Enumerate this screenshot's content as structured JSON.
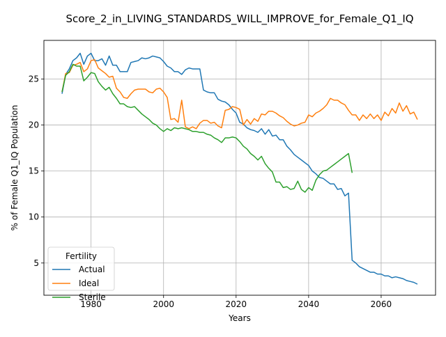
{
  "chart_data": {
    "type": "line",
    "title": "Score_2_in_LIVING_STANDARDS_WILL_IMPROVE_for_Female_Q1_IQ",
    "xlabel": "Years",
    "ylabel": "% of Female Q1_IQ Population",
    "xlim": [
      1967,
      2075
    ],
    "ylim": [
      1.5,
      29.2
    ],
    "xticks": [
      1980,
      2000,
      2020,
      2040,
      2060
    ],
    "yticks": [
      5,
      10,
      15,
      20,
      25
    ],
    "grid": true,
    "legend": {
      "title": "Fertility",
      "placement": "lower-left"
    },
    "series": [
      {
        "name": "Actual",
        "color": "#1f77b4",
        "x": [
          1972,
          1973,
          1974,
          1975,
          1976,
          1977,
          1978,
          1979,
          1980,
          1981,
          1982,
          1983,
          1984,
          1985,
          1986,
          1987,
          1988,
          1989,
          1990,
          1991,
          1992,
          1993,
          1994,
          1995,
          1996,
          1997,
          1998,
          1999,
          2000,
          2001,
          2002,
          2003,
          2004,
          2005,
          2006,
          2007,
          2008,
          2009,
          2010,
          2011,
          2012,
          2013,
          2014,
          2015,
          2016,
          2017,
          2018,
          2019,
          2020,
          2021,
          2022,
          2023,
          2024,
          2025,
          2026,
          2027,
          2028,
          2029,
          2030,
          2031,
          2032,
          2033,
          2034,
          2035,
          2036,
          2037,
          2038,
          2039,
          2040,
          2041,
          2042,
          2043,
          2044,
          2045,
          2046,
          2047,
          2048,
          2049,
          2050,
          2051,
          2052,
          2053,
          2054,
          2055,
          2056,
          2057,
          2058,
          2059,
          2060,
          2061,
          2062,
          2063,
          2064,
          2065,
          2066,
          2067,
          2068,
          2069,
          2070
        ],
        "y": [
          23.4,
          25.5,
          26.1,
          27.0,
          27.3,
          27.8,
          26.6,
          27.5,
          27.8,
          27.0,
          27.0,
          27.2,
          26.5,
          27.5,
          26.5,
          26.5,
          25.8,
          25.8,
          25.8,
          26.8,
          26.9,
          27.0,
          27.3,
          27.2,
          27.3,
          27.5,
          27.4,
          27.3,
          26.9,
          26.4,
          26.2,
          25.8,
          25.8,
          25.5,
          26.0,
          26.2,
          26.1,
          26.1,
          26.1,
          23.8,
          23.6,
          23.5,
          23.5,
          22.8,
          22.6,
          22.5,
          22.2,
          21.7,
          21.3,
          20.3,
          20.1,
          19.7,
          19.5,
          19.4,
          19.2,
          19.6,
          19.0,
          19.5,
          18.8,
          18.9,
          18.4,
          18.4,
          17.7,
          17.3,
          16.8,
          16.5,
          16.2,
          15.9,
          15.6,
          15.0,
          14.7,
          14.3,
          14.2,
          13.9,
          13.6,
          13.6,
          13.0,
          13.1,
          12.3,
          12.6,
          5.3,
          5.0,
          4.6,
          4.4,
          4.2,
          4.0,
          4.0,
          3.8,
          3.8,
          3.6,
          3.6,
          3.4,
          3.5,
          3.4,
          3.3,
          3.1,
          3.0,
          2.9,
          2.7
        ]
      },
      {
        "name": "Ideal",
        "color": "#ff7f0e",
        "x": [
          1972,
          1973,
          1974,
          1975,
          1976,
          1977,
          1978,
          1979,
          1980,
          1981,
          1982,
          1983,
          1984,
          1985,
          1986,
          1987,
          1988,
          1989,
          1990,
          1991,
          1992,
          1993,
          1994,
          1995,
          1996,
          1997,
          1998,
          1999,
          2000,
          2001,
          2002,
          2003,
          2004,
          2005,
          2006,
          2007,
          2008,
          2009,
          2010,
          2011,
          2012,
          2013,
          2014,
          2015,
          2016,
          2017,
          2018,
          2019,
          2020,
          2021,
          2022,
          2023,
          2024,
          2025,
          2026,
          2027,
          2028,
          2029,
          2030,
          2031,
          2032,
          2033,
          2034,
          2035,
          2036,
          2037,
          2038,
          2039,
          2040,
          2041,
          2042,
          2043,
          2044,
          2045,
          2046,
          2047,
          2048,
          2049,
          2050,
          2051,
          2052,
          2053,
          2054,
          2055,
          2056,
          2057,
          2058,
          2059,
          2060,
          2061,
          2062,
          2063,
          2064,
          2065,
          2066,
          2067,
          2068,
          2069,
          2070
        ],
        "y": [
          23.6,
          25.6,
          25.7,
          26.5,
          26.6,
          26.8,
          25.8,
          26.1,
          27.0,
          27.1,
          26.2,
          25.9,
          25.6,
          25.2,
          25.3,
          24.0,
          23.6,
          23.0,
          22.9,
          23.4,
          23.8,
          23.9,
          23.9,
          23.9,
          23.6,
          23.5,
          23.9,
          24.0,
          23.6,
          23.0,
          20.6,
          20.7,
          20.3,
          22.7,
          19.8,
          19.6,
          19.8,
          19.6,
          20.2,
          20.5,
          20.5,
          20.2,
          20.3,
          19.9,
          19.7,
          21.6,
          21.7,
          22.0,
          21.9,
          21.7,
          20.0,
          20.6,
          20.1,
          20.7,
          20.4,
          21.2,
          21.1,
          21.5,
          21.5,
          21.3,
          21.0,
          20.8,
          20.4,
          20.1,
          19.9,
          20.0,
          20.2,
          20.3,
          21.1,
          20.9,
          21.3,
          21.5,
          21.8,
          22.2,
          22.9,
          22.7,
          22.7,
          22.4,
          22.2,
          21.6,
          21.1,
          21.1,
          20.5,
          21.1,
          20.7,
          21.2,
          20.7,
          21.1,
          20.5,
          21.4,
          21.0,
          21.8,
          21.3,
          22.4,
          21.5,
          22.1,
          21.2,
          21.4,
          20.6
        ]
      },
      {
        "name": "Sterile",
        "color": "#2ca02c",
        "x": [
          1972,
          1973,
          1974,
          1975,
          1976,
          1977,
          1978,
          1979,
          1980,
          1981,
          1982,
          1983,
          1984,
          1985,
          1986,
          1987,
          1988,
          1989,
          1990,
          1991,
          1992,
          1993,
          1994,
          1995,
          1996,
          1997,
          1998,
          1999,
          2000,
          2001,
          2002,
          2003,
          2004,
          2005,
          2006,
          2007,
          2008,
          2009,
          2010,
          2011,
          2012,
          2013,
          2014,
          2015,
          2016,
          2017,
          2018,
          2019,
          2020,
          2021,
          2022,
          2023,
          2024,
          2025,
          2026,
          2027,
          2028,
          2029,
          2030,
          2031,
          2032,
          2033,
          2034,
          2035,
          2036,
          2037,
          2038,
          2039,
          2040,
          2041,
          2042,
          2043,
          2044,
          2045,
          2046,
          2047,
          2048,
          2049,
          2050,
          2051,
          2052
        ],
        "y": [
          23.6,
          25.4,
          25.8,
          26.6,
          26.4,
          26.4,
          24.8,
          25.2,
          25.7,
          25.6,
          24.7,
          24.2,
          23.8,
          24.1,
          23.4,
          22.9,
          22.3,
          22.3,
          22.0,
          21.9,
          22.0,
          21.6,
          21.2,
          20.9,
          20.6,
          20.2,
          20.0,
          19.6,
          19.3,
          19.6,
          19.4,
          19.7,
          19.6,
          19.7,
          19.6,
          19.5,
          19.3,
          19.3,
          19.2,
          19.2,
          19.0,
          18.9,
          18.6,
          18.4,
          18.1,
          18.6,
          18.6,
          18.7,
          18.6,
          18.2,
          17.7,
          17.4,
          16.9,
          16.6,
          16.2,
          16.6,
          15.8,
          15.3,
          14.9,
          13.8,
          13.8,
          13.2,
          13.3,
          13.0,
          13.1,
          13.9,
          13.0,
          12.7,
          13.2,
          12.9,
          14.0,
          14.6,
          15.0,
          15.1,
          15.4,
          15.7,
          16.0,
          16.3,
          16.6,
          16.9,
          14.8
        ]
      }
    ]
  }
}
